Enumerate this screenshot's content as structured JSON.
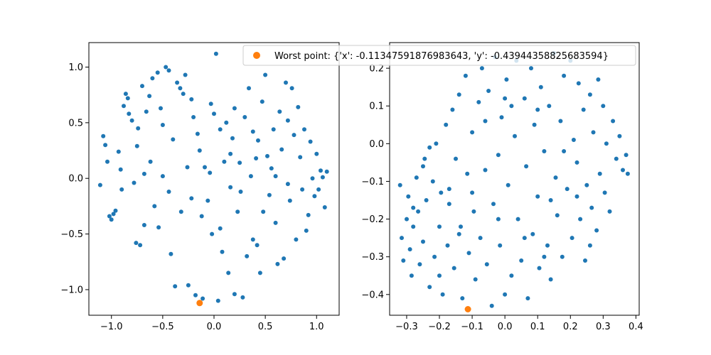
{
  "colors": {
    "series": "#1f77b4",
    "worst": "#ff7f0e",
    "axes": "#000000",
    "background": "#ffffff"
  },
  "legend": {
    "label": "Worst point: {'x': -0.11347591876983643, 'y': -0.43944358825683594}",
    "placement": "top-right"
  },
  "chart_data": [
    {
      "type": "scatter",
      "xlim": [
        -1.22,
        1.22
      ],
      "ylim": [
        -1.23,
        1.22
      ],
      "xticks": [
        -1.0,
        -0.5,
        0.0,
        0.5,
        1.0
      ],
      "xtick_labels": [
        "−1.0",
        "−0.5",
        "0.0",
        "0.5",
        "1.0"
      ],
      "yticks": [
        -1.0,
        -0.5,
        0.0,
        0.5,
        1.0
      ],
      "ytick_labels": [
        "−1.0",
        "−0.5",
        "0.0",
        "0.5",
        "1.0"
      ],
      "grid": false,
      "worst": {
        "x": -0.14,
        "y": -1.12
      },
      "points": [
        [
          -1.11,
          -0.06
        ],
        [
          -1.08,
          0.38
        ],
        [
          -1.06,
          0.3
        ],
        [
          -1.04,
          0.15
        ],
        [
          -1.02,
          -0.34
        ],
        [
          -1.0,
          -0.37
        ],
        [
          -0.98,
          -0.32
        ],
        [
          -0.96,
          -0.29
        ],
        [
          -0.93,
          0.24
        ],
        [
          -0.91,
          0.08
        ],
        [
          -0.9,
          -0.1
        ],
        [
          -0.88,
          0.65
        ],
        [
          -0.86,
          0.76
        ],
        [
          -0.84,
          0.72
        ],
        [
          -0.83,
          0.58
        ],
        [
          -0.8,
          0.52
        ],
        [
          -0.78,
          -0.04
        ],
        [
          -0.76,
          -0.58
        ],
        [
          -0.74,
          0.45
        ],
        [
          -0.72,
          -0.6
        ],
        [
          -0.7,
          0.83
        ],
        [
          -0.68,
          -0.42
        ],
        [
          -0.66,
          0.6
        ],
        [
          -0.63,
          0.74
        ],
        [
          -0.6,
          0.9
        ],
        [
          -0.58,
          -0.25
        ],
        [
          -0.55,
          0.95
        ],
        [
          -0.52,
          0.63
        ],
        [
          -0.5,
          0.48
        ],
        [
          -0.47,
          1.0
        ],
        [
          -0.44,
          0.97
        ],
        [
          -0.42,
          -0.68
        ],
        [
          -0.4,
          0.35
        ],
        [
          -0.38,
          -0.97
        ],
        [
          -0.36,
          0.86
        ],
        [
          -0.33,
          0.81
        ],
        [
          -0.3,
          0.76
        ],
        [
          -0.28,
          0.93
        ],
        [
          -0.25,
          -0.96
        ],
        [
          -0.22,
          0.71
        ],
        [
          -0.2,
          0.55
        ],
        [
          -0.18,
          -1.05
        ],
        [
          -0.16,
          0.4
        ],
        [
          -0.14,
          0.25
        ],
        [
          -0.11,
          -1.08
        ],
        [
          -0.09,
          0.1
        ],
        [
          -0.06,
          -0.2
        ],
        [
          -0.03,
          0.67
        ],
        [
          -0.02,
          -0.5
        ],
        [
          0.0,
          0.58
        ],
        [
          0.02,
          1.12
        ],
        [
          0.04,
          -1.1
        ],
        [
          0.06,
          0.44
        ],
        [
          0.08,
          -0.66
        ],
        [
          0.1,
          0.15
        ],
        [
          0.12,
          0.5
        ],
        [
          0.14,
          -0.85
        ],
        [
          0.16,
          -0.08
        ],
        [
          0.18,
          0.36
        ],
        [
          0.2,
          -1.04
        ],
        [
          0.23,
          -0.3
        ],
        [
          0.25,
          0.14
        ],
        [
          0.28,
          -1.07
        ],
        [
          0.3,
          0.55
        ],
        [
          0.32,
          -0.7
        ],
        [
          0.34,
          0.81
        ],
        [
          0.36,
          0.02
        ],
        [
          0.38,
          -0.55
        ],
        [
          0.41,
          0.18
        ],
        [
          0.43,
          0.34
        ],
        [
          0.45,
          -0.85
        ],
        [
          0.47,
          0.69
        ],
        [
          0.5,
          0.93
        ],
        [
          0.52,
          0.2
        ],
        [
          0.54,
          -0.15
        ],
        [
          0.56,
          0.09
        ],
        [
          0.58,
          0.44
        ],
        [
          0.6,
          -0.4
        ],
        [
          0.62,
          -0.77
        ],
        [
          0.64,
          0.6
        ],
        [
          0.66,
          0.26
        ],
        [
          0.68,
          -0.72
        ],
        [
          0.7,
          0.86
        ],
        [
          0.72,
          0.52
        ],
        [
          0.74,
          -0.2
        ],
        [
          0.76,
          0.81
        ],
        [
          0.78,
          0.39
        ],
        [
          0.8,
          -0.55
        ],
        [
          0.82,
          0.64
        ],
        [
          0.84,
          0.19
        ],
        [
          0.86,
          -0.1
        ],
        [
          0.88,
          0.44
        ],
        [
          0.9,
          -0.47
        ],
        [
          0.92,
          -0.33
        ],
        [
          0.94,
          0.33
        ],
        [
          0.96,
          0.0
        ],
        [
          0.98,
          -0.16
        ],
        [
          1.0,
          0.22
        ],
        [
          1.02,
          -0.1
        ],
        [
          1.04,
          0.07
        ],
        [
          1.06,
          0.01
        ],
        [
          1.08,
          -0.26
        ],
        [
          1.1,
          0.06
        ],
        [
          -0.75,
          0.29
        ],
        [
          -0.62,
          0.15
        ],
        [
          -0.5,
          0.02
        ],
        [
          -0.44,
          -0.12
        ],
        [
          -0.32,
          -0.3
        ],
        [
          -0.22,
          -0.18
        ],
        [
          -0.12,
          -0.34
        ],
        [
          -0.04,
          0.05
        ],
        [
          0.06,
          -0.45
        ],
        [
          0.16,
          0.22
        ],
        [
          0.26,
          -0.12
        ],
        [
          0.38,
          0.42
        ],
        [
          0.48,
          -0.3
        ],
        [
          0.6,
          0.02
        ],
        [
          0.72,
          -0.05
        ],
        [
          -0.68,
          0.04
        ],
        [
          -0.54,
          -0.44
        ],
        [
          -0.26,
          0.1
        ],
        [
          0.2,
          0.63
        ],
        [
          0.42,
          -0.6
        ]
      ]
    },
    {
      "type": "scatter",
      "xlim": [
        -0.352,
        0.41
      ],
      "ylim": [
        -0.455,
        0.268
      ],
      "xticks": [
        -0.3,
        -0.2,
        -0.1,
        0.0,
        0.1,
        0.2,
        0.3,
        0.4
      ],
      "xtick_labels": [
        "−0.3",
        "−0.2",
        "−0.1",
        "0.0",
        "0.1",
        "0.2",
        "0.3",
        "0.4"
      ],
      "yticks": [
        -0.4,
        -0.3,
        -0.2,
        -0.1,
        0.0,
        0.1,
        0.2
      ],
      "ytick_labels": [
        "−0.4",
        "−0.3",
        "−0.2",
        "−0.1",
        "0.0",
        "0.1",
        "0.2"
      ],
      "grid": false,
      "worst": {
        "x": -0.113,
        "y": -0.439
      },
      "points": [
        [
          -0.32,
          -0.11
        ],
        [
          -0.315,
          -0.25
        ],
        [
          -0.31,
          -0.31
        ],
        [
          -0.3,
          -0.2
        ],
        [
          -0.295,
          -0.14
        ],
        [
          -0.29,
          -0.28
        ],
        [
          -0.285,
          -0.35
        ],
        [
          -0.28,
          -0.22
        ],
        [
          -0.27,
          -0.09
        ],
        [
          -0.265,
          -0.18
        ],
        [
          -0.26,
          -0.32
        ],
        [
          -0.25,
          -0.26
        ],
        [
          -0.245,
          -0.04
        ],
        [
          -0.24,
          -0.15
        ],
        [
          -0.23,
          -0.38
        ],
        [
          -0.22,
          -0.1
        ],
        [
          -0.215,
          -0.3
        ],
        [
          -0.21,
          0.0
        ],
        [
          -0.2,
          -0.22
        ],
        [
          -0.195,
          -0.13
        ],
        [
          -0.19,
          -0.4
        ],
        [
          -0.18,
          0.05
        ],
        [
          -0.175,
          -0.27
        ],
        [
          -0.17,
          -0.16
        ],
        [
          -0.16,
          0.09
        ],
        [
          -0.155,
          -0.33
        ],
        [
          -0.15,
          -0.04
        ],
        [
          -0.14,
          0.13
        ],
        [
          -0.135,
          -0.22
        ],
        [
          -0.13,
          -0.41
        ],
        [
          -0.12,
          0.18
        ],
        [
          -0.115,
          -0.08
        ],
        [
          -0.11,
          -0.29
        ],
        [
          -0.1,
          0.03
        ],
        [
          -0.095,
          -0.18
        ],
        [
          -0.09,
          -0.36
        ],
        [
          -0.08,
          0.11
        ],
        [
          -0.075,
          -0.25
        ],
        [
          -0.07,
          0.2
        ],
        [
          -0.06,
          -0.07
        ],
        [
          -0.055,
          -0.32
        ],
        [
          -0.05,
          0.14
        ],
        [
          -0.04,
          -0.43
        ],
        [
          -0.035,
          -0.16
        ],
        [
          -0.03,
          0.23
        ],
        [
          -0.02,
          -0.03
        ],
        [
          -0.015,
          -0.27
        ],
        [
          -0.01,
          0.07
        ],
        [
          0.0,
          -0.4
        ],
        [
          0.005,
          0.17
        ],
        [
          0.01,
          -0.11
        ],
        [
          0.02,
          -0.35
        ],
        [
          0.03,
          0.02
        ],
        [
          0.035,
          0.22
        ],
        [
          0.04,
          -0.2
        ],
        [
          0.05,
          -0.31
        ],
        [
          0.06,
          0.12
        ],
        [
          0.065,
          -0.06
        ],
        [
          0.07,
          -0.41
        ],
        [
          0.08,
          0.2
        ],
        [
          0.085,
          -0.24
        ],
        [
          0.09,
          0.05
        ],
        [
          0.1,
          -0.14
        ],
        [
          0.105,
          -0.33
        ],
        [
          0.11,
          0.15
        ],
        [
          0.12,
          -0.02
        ],
        [
          0.13,
          -0.27
        ],
        [
          0.135,
          0.1
        ],
        [
          0.14,
          -0.36
        ],
        [
          0.15,
          0.24
        ],
        [
          0.155,
          -0.09
        ],
        [
          0.16,
          -0.19
        ],
        [
          0.17,
          0.06
        ],
        [
          0.175,
          -0.3
        ],
        [
          0.18,
          0.18
        ],
        [
          0.19,
          -0.12
        ],
        [
          0.2,
          0.22
        ],
        [
          0.205,
          -0.25
        ],
        [
          0.21,
          0.01
        ],
        [
          0.22,
          -0.05
        ],
        [
          0.225,
          0.16
        ],
        [
          0.23,
          -0.2
        ],
        [
          0.24,
          0.09
        ],
        [
          0.245,
          -0.31
        ],
        [
          0.25,
          -0.11
        ],
        [
          0.26,
          0.13
        ],
        [
          0.265,
          -0.17
        ],
        [
          0.27,
          0.03
        ],
        [
          0.28,
          -0.23
        ],
        [
          0.285,
          0.17
        ],
        [
          0.29,
          -0.08
        ],
        [
          0.3,
          0.1
        ],
        [
          0.305,
          -0.13
        ],
        [
          0.31,
          0.0
        ],
        [
          0.32,
          -0.18
        ],
        [
          0.33,
          0.06
        ],
        [
          0.34,
          -0.04
        ],
        [
          0.35,
          0.02
        ],
        [
          0.36,
          -0.07
        ],
        [
          0.37,
          -0.03
        ],
        [
          0.375,
          -0.08
        ],
        [
          -0.25,
          -0.06
        ],
        [
          -0.2,
          -0.35
        ],
        [
          -0.14,
          -0.24
        ],
        [
          -0.1,
          -0.13
        ],
        [
          -0.06,
          0.06
        ],
        [
          -0.02,
          -0.2
        ],
        [
          0.02,
          0.1
        ],
        [
          0.06,
          -0.25
        ],
        [
          0.1,
          0.09
        ],
        [
          0.14,
          -0.15
        ],
        [
          0.18,
          -0.02
        ],
        [
          0.22,
          -0.14
        ],
        [
          -0.28,
          -0.17
        ],
        [
          -0.23,
          -0.01
        ],
        [
          0.0,
          0.12
        ],
        [
          0.12,
          -0.3
        ],
        [
          -0.17,
          -0.12
        ],
        [
          0.26,
          -0.27
        ]
      ]
    }
  ]
}
